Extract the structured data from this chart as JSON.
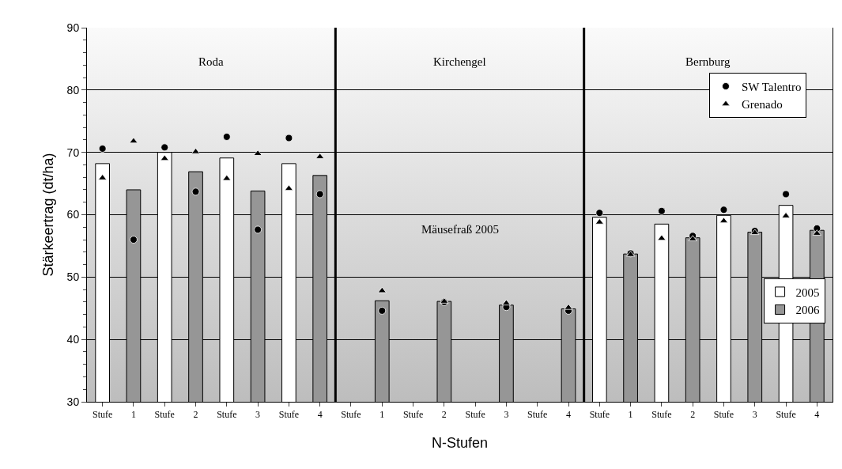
{
  "chart_data": {
    "type": "bar",
    "xlabel": "N-Stufen",
    "ylabel": "Stärkeertrag (dt/ha)",
    "categories": [
      "Stufe",
      "1",
      "Stufe",
      "2",
      "Stufe",
      "3",
      "Stufe",
      "4",
      "Stufe",
      "1",
      "Stufe",
      "2",
      "Stufe",
      "3",
      "Stufe",
      "4",
      "Stufe",
      "1",
      "Stufe",
      "2",
      "Stufe",
      "3",
      "Stufe",
      "4"
    ],
    "series": [
      {
        "name": "2005",
        "color": "#ffffff",
        "values": [
          68.2,
          null,
          70.0,
          null,
          69.1,
          null,
          68.2,
          null,
          null,
          null,
          null,
          null,
          null,
          null,
          null,
          null,
          59.6,
          null,
          58.5,
          null,
          59.9,
          null,
          61.5,
          null
        ]
      },
      {
        "name": "2006",
        "color": "#969696",
        "values": [
          null,
          64.0,
          null,
          66.9,
          null,
          63.8,
          null,
          66.3,
          null,
          46.2,
          null,
          46.1,
          null,
          45.5,
          null,
          44.9,
          null,
          53.7,
          null,
          56.3,
          null,
          57.2,
          null,
          57.5
        ]
      },
      {
        "name": "SW Talentro",
        "type": "scatter",
        "marker": "circle",
        "color": "#000000",
        "values": [
          70.6,
          56.0,
          70.8,
          63.7,
          72.5,
          57.6,
          72.3,
          63.3,
          null,
          44.6,
          null,
          46.0,
          null,
          45.2,
          null,
          44.6,
          60.3,
          53.8,
          60.6,
          56.6,
          60.8,
          57.4,
          63.3,
          57.8
        ]
      },
      {
        "name": "Grenado",
        "type": "scatter",
        "marker": "triangle",
        "color": "#000000",
        "values": [
          65.9,
          71.8,
          69.0,
          70.1,
          65.8,
          69.8,
          64.2,
          69.3,
          null,
          47.8,
          null,
          46.1,
          null,
          45.8,
          null,
          45.1,
          58.8,
          53.6,
          56.2,
          56.1,
          59.0,
          57.1,
          59.8,
          57.0
        ]
      }
    ],
    "ylim": [
      30,
      90
    ],
    "yticks": [
      30,
      40,
      50,
      60,
      70,
      80,
      90
    ],
    "grid": "y",
    "legend": "right",
    "annotations": [
      "Roda",
      "Kirchengel",
      "Bernburg",
      "Mäusefraß 2005"
    ]
  }
}
